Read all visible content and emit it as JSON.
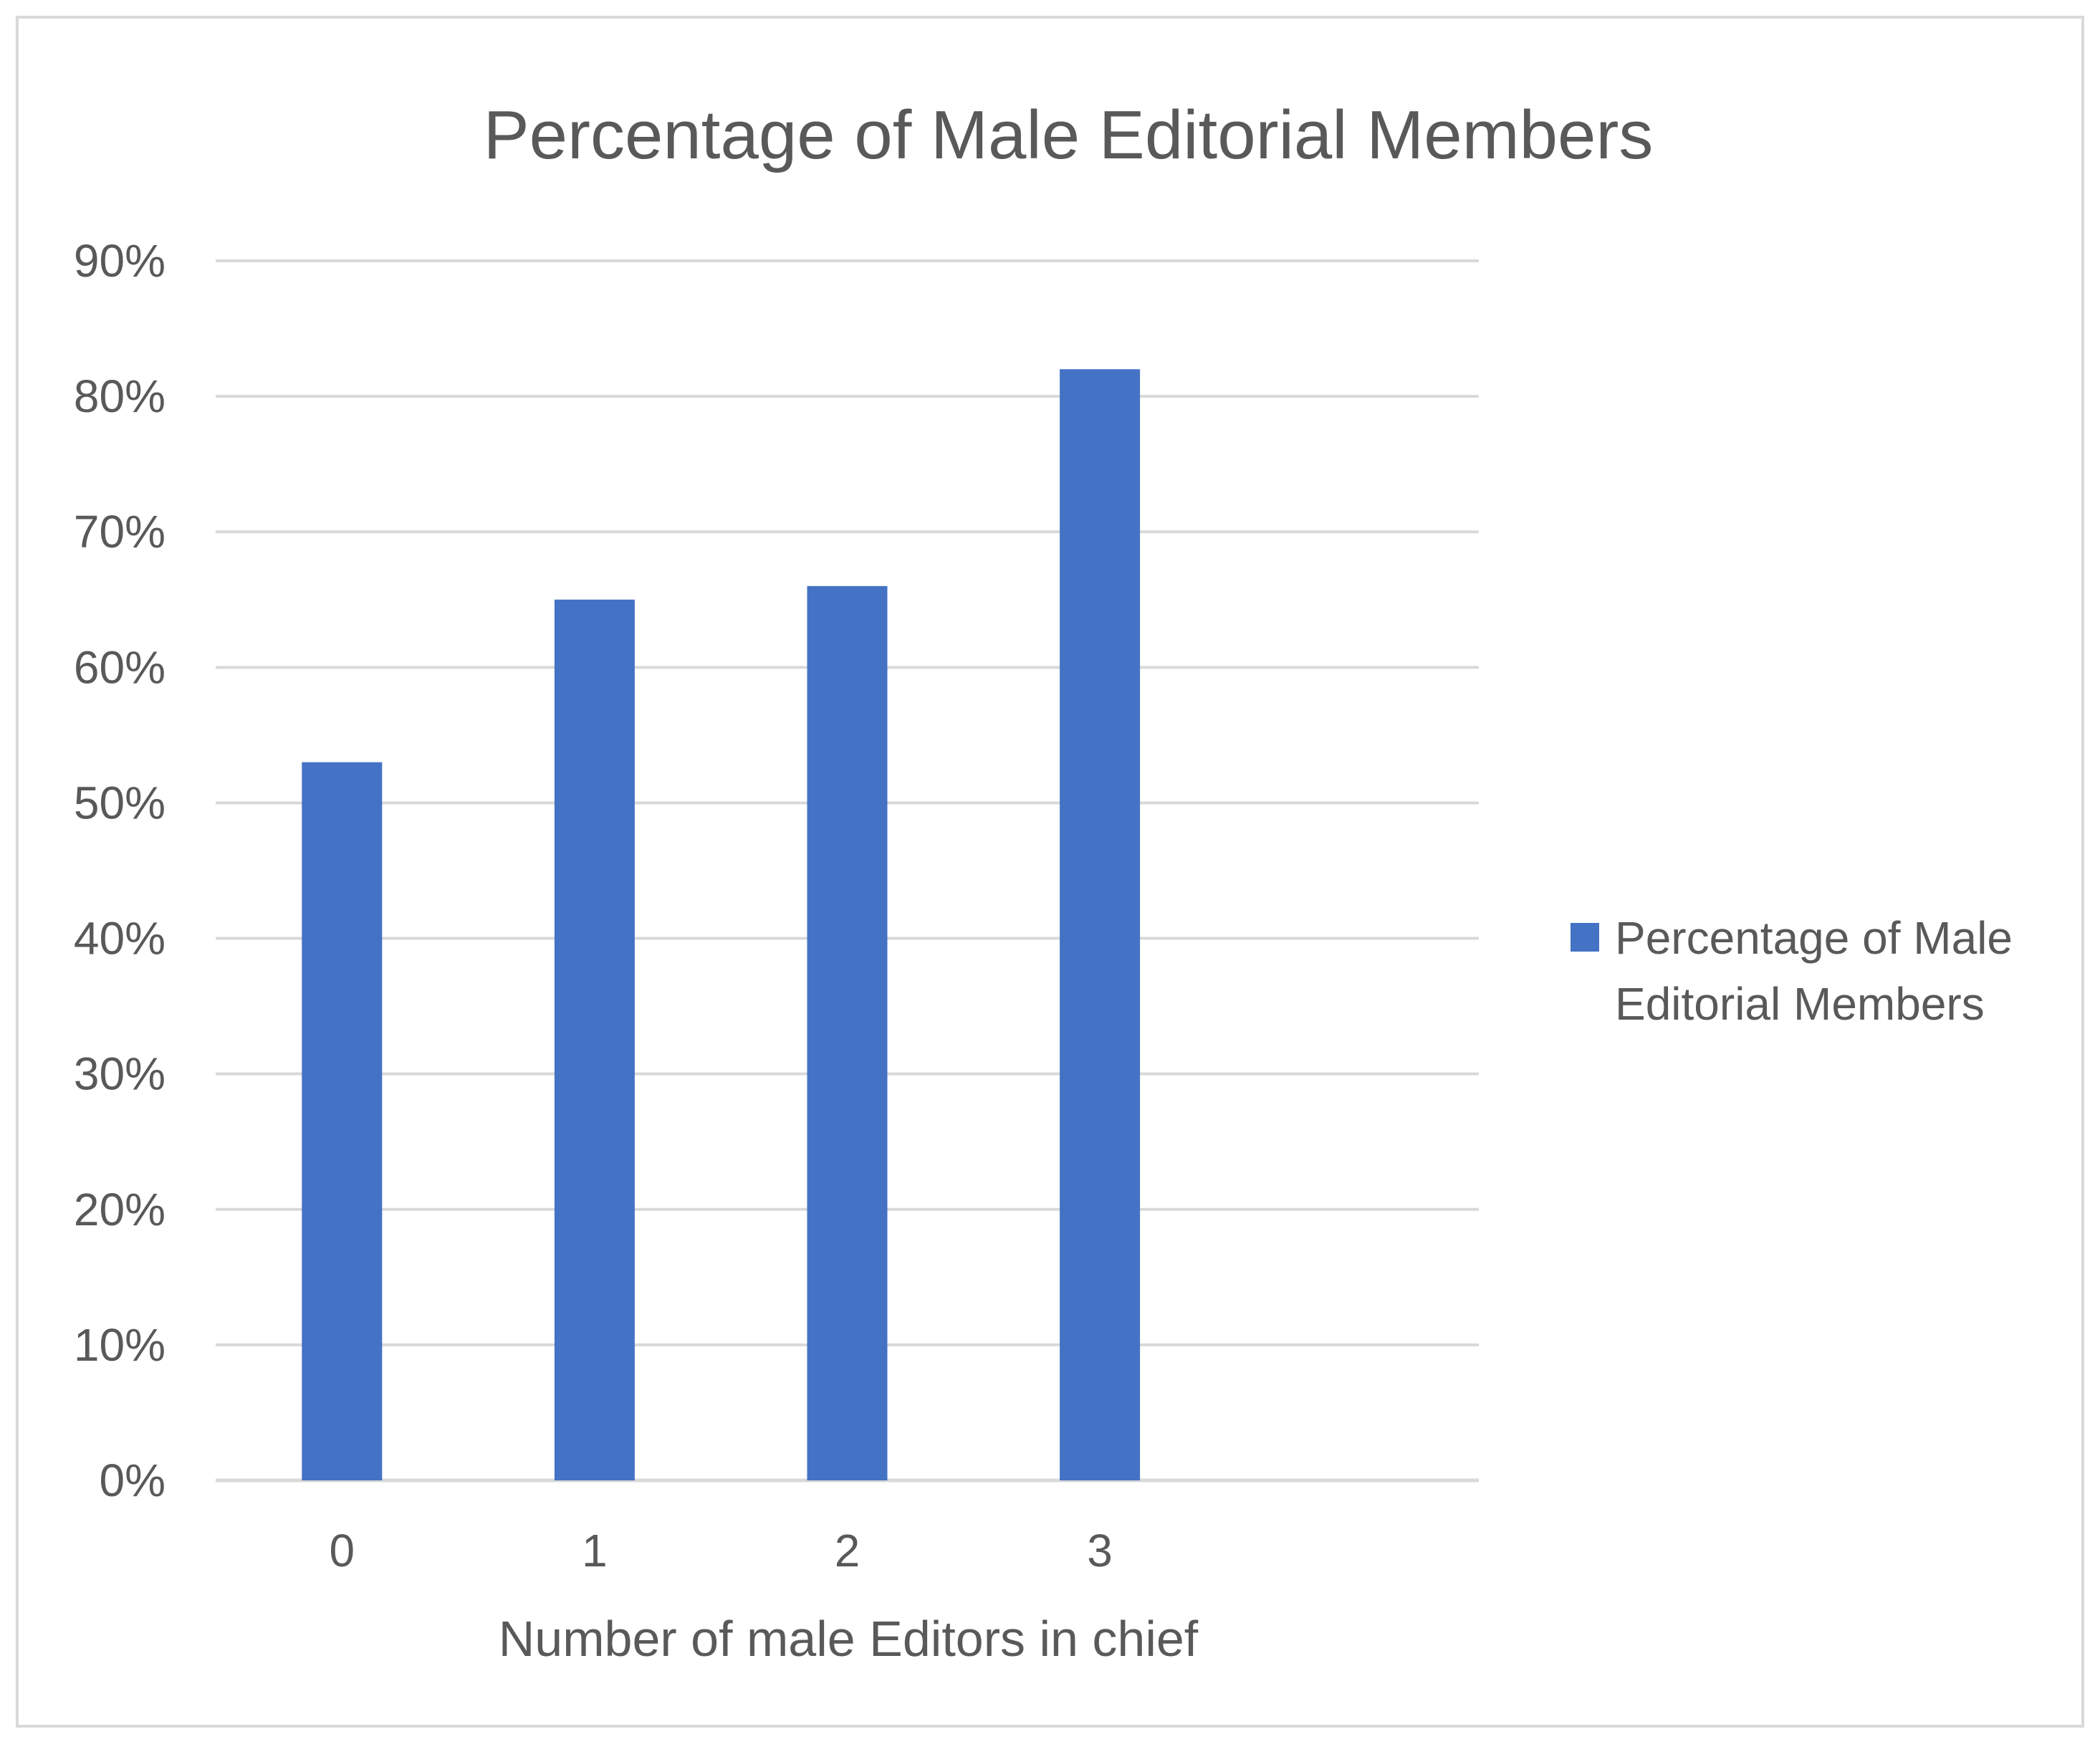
{
  "chart_data": {
    "type": "bar",
    "title": "Percentage of Male Editorial Members",
    "xlabel": "Number of male Editors in chief",
    "ylabel": "",
    "categories": [
      "0",
      "1",
      "2",
      "3"
    ],
    "series": [
      {
        "name": "Percentage of Male Editorial Members",
        "values": [
          53,
          65,
          66,
          82
        ],
        "color": "#4472c4"
      }
    ],
    "ylim": [
      0,
      90
    ],
    "y_ticks": [
      "0%",
      "10%",
      "20%",
      "30%",
      "40%",
      "50%",
      "60%",
      "70%",
      "80%",
      "90%"
    ],
    "grid": true,
    "legend_position": "right",
    "legend_lines": [
      "Percentage of Male",
      "Editorial Members"
    ],
    "colors": {
      "bar": "#4472c4",
      "gridline": "#d9d9d9",
      "text": "#595959",
      "frame": "#d9d9d9"
    }
  }
}
